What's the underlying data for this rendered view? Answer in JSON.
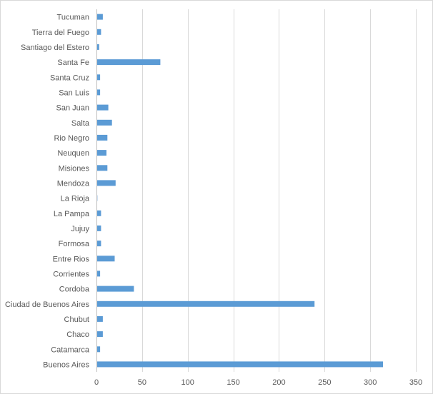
{
  "chart_data": {
    "type": "bar",
    "orientation": "horizontal",
    "title": "",
    "xlabel": "",
    "ylabel": "",
    "categories": [
      "Tucuman",
      "Tierra del Fuego",
      "Santiago del Estero",
      "Santa Fe",
      "Santa Cruz",
      "San Luis",
      "San Juan",
      "Salta",
      "Rio Negro",
      "Neuquen",
      "Misiones",
      "Mendoza",
      "La Rioja",
      "La Pampa",
      "Jujuy",
      "Formosa",
      "Entre Rios",
      "Corrientes",
      "Cordoba",
      "Ciudad de Buenos Aires",
      "Chubut",
      "Chaco",
      "Catamarca",
      "Buenos Aires"
    ],
    "values": [
      7,
      5,
      3,
      70,
      4,
      4,
      13,
      17,
      12,
      11,
      12,
      21,
      1,
      5,
      5,
      5,
      20,
      4,
      41,
      239,
      7,
      7,
      4,
      314
    ],
    "xlim": [
      0,
      350
    ],
    "xticks": [
      0,
      50,
      100,
      150,
      200,
      250,
      300,
      350
    ],
    "grid": true,
    "bar_color": "#5b9bd5",
    "legend": "none"
  }
}
